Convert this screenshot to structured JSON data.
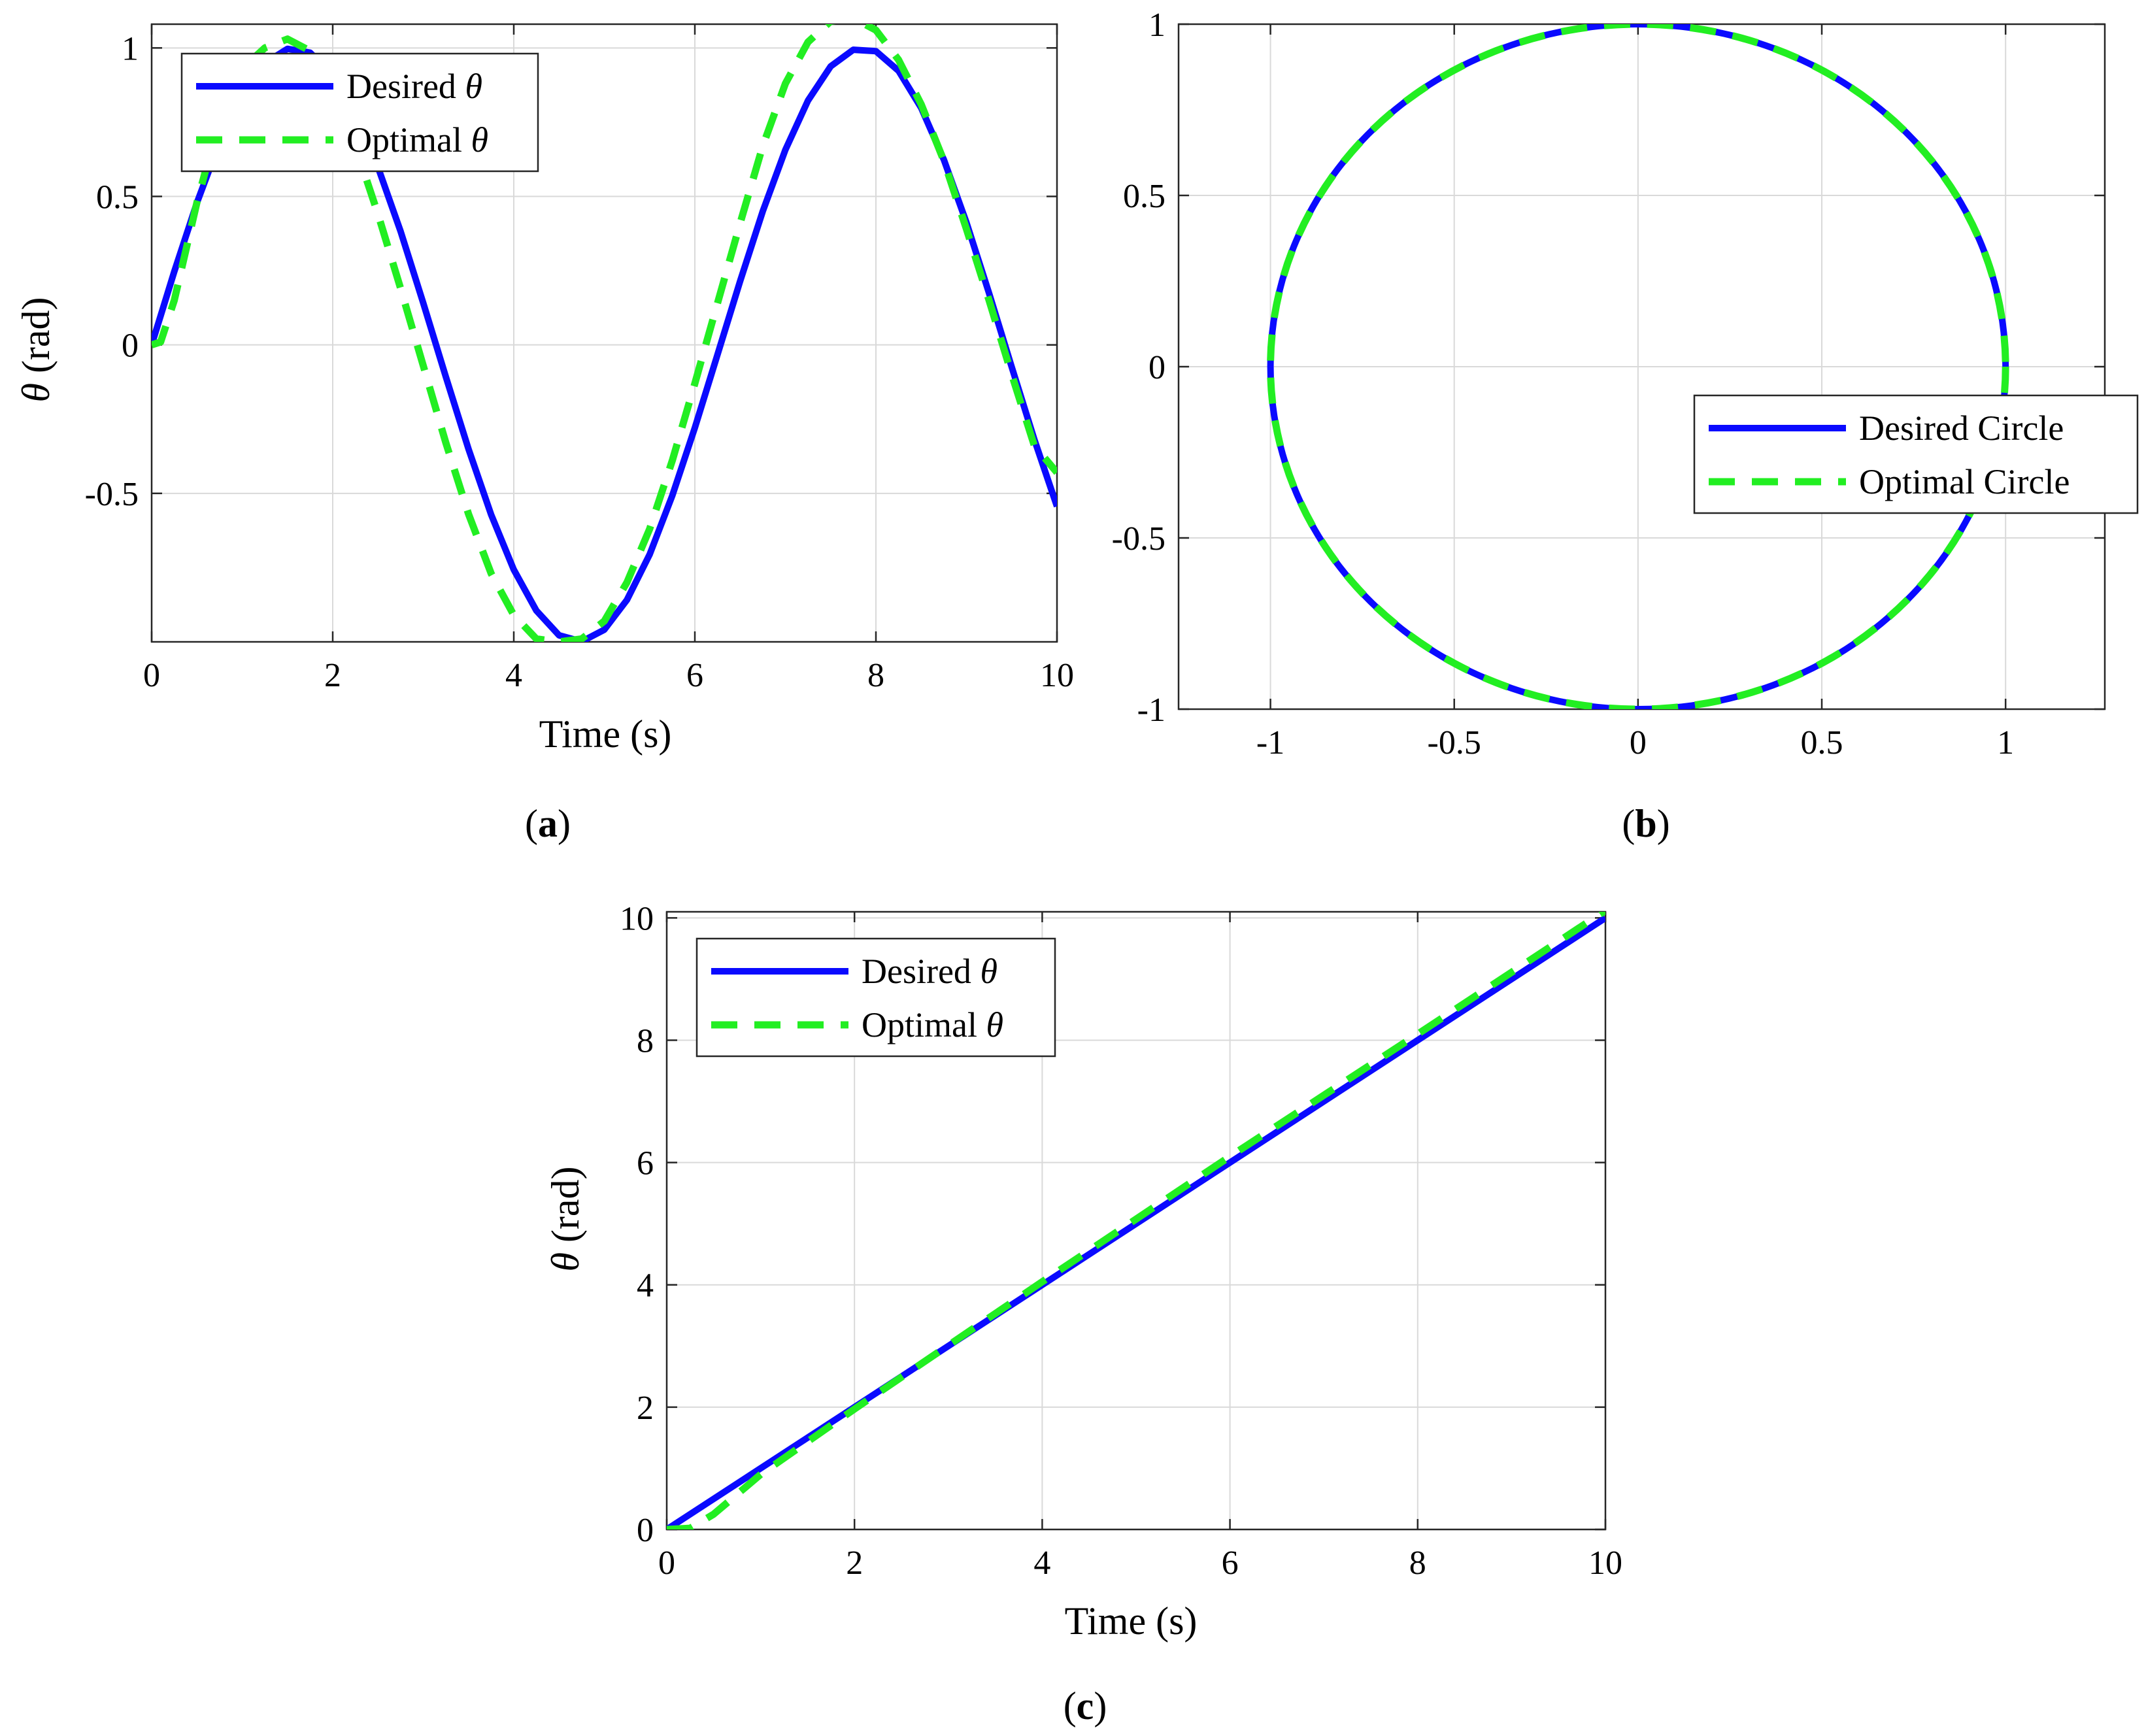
{
  "colors": {
    "desired": "#0a0aff",
    "optimal": "#22ee22"
  },
  "chart_data": [
    {
      "id": "a",
      "type": "line",
      "caption": "a",
      "xlabel": "Time (s)",
      "ylabel_symbol": "θ",
      "ylabel_unit": " (rad)",
      "xlim": [
        0,
        10
      ],
      "ylim": [
        -1,
        1.08
      ],
      "xticks": [
        0,
        2,
        4,
        6,
        8,
        10
      ],
      "xtick_labels": [
        "0",
        "2",
        "4",
        "6",
        "8",
        "10"
      ],
      "yticks": [
        -0.5,
        0,
        0.5,
        1
      ],
      "ytick_labels": [
        "-0.5",
        "0",
        "0.5",
        "1"
      ],
      "grid": true,
      "legend": {
        "placement": "top-left",
        "entries": [
          {
            "text": "Desired ",
            "symbol": "θ",
            "style": "solid"
          },
          {
            "text": "Optimal ",
            "symbol": "θ",
            "style": "dashed"
          }
        ]
      },
      "series": [
        {
          "style": "solid",
          "x": [
            0,
            0.25,
            0.5,
            0.75,
            1,
            1.25,
            1.5,
            1.75,
            2,
            2.25,
            2.5,
            2.75,
            3,
            3.25,
            3.5,
            3.75,
            4,
            4.25,
            4.5,
            4.75,
            5,
            5.25,
            5.5,
            5.75,
            6,
            6.25,
            6.5,
            6.75,
            7,
            7.25,
            7.5,
            7.75,
            8,
            8.25,
            8.5,
            8.75,
            9,
            9.25,
            9.5,
            9.75,
            10
          ],
          "y": [
            0,
            0.247,
            0.479,
            0.682,
            0.841,
            0.949,
            0.997,
            0.984,
            0.909,
            0.778,
            0.598,
            0.382,
            0.141,
            -0.108,
            -0.351,
            -0.572,
            -0.757,
            -0.895,
            -0.978,
            -0.999,
            -0.959,
            -0.859,
            -0.706,
            -0.508,
            -0.279,
            -0.033,
            0.215,
            0.45,
            0.657,
            0.823,
            0.938,
            0.994,
            0.989,
            0.923,
            0.798,
            0.624,
            0.412,
            0.174,
            -0.075,
            -0.319,
            -0.544
          ]
        },
        {
          "style": "dashed",
          "x": [
            0,
            0.1,
            0.25,
            0.5,
            0.75,
            1,
            1.25,
            1.5,
            1.75,
            2,
            2.25,
            2.5,
            2.75,
            3,
            3.25,
            3.5,
            3.75,
            4,
            4.25,
            4.5,
            4.75,
            5,
            5.25,
            5.5,
            5.75,
            6,
            6.25,
            6.5,
            6.75,
            7,
            7.25,
            7.5,
            7.75,
            8,
            8.25,
            8.5,
            8.75,
            9,
            9.25,
            9.5,
            9.75,
            10
          ],
          "y": [
            0,
            0.01,
            0.15,
            0.48,
            0.76,
            0.93,
            1.0,
            1.03,
            0.99,
            0.86,
            0.67,
            0.44,
            0.19,
            -0.07,
            -0.33,
            -0.57,
            -0.77,
            -0.91,
            -0.99,
            -1.0,
            -0.99,
            -0.93,
            -0.8,
            -0.62,
            -0.39,
            -0.13,
            0.14,
            0.41,
            0.67,
            0.88,
            1.02,
            1.09,
            1.1,
            1.06,
            0.96,
            0.81,
            0.62,
            0.39,
            0.15,
            -0.1,
            -0.34,
            -0.43
          ]
        }
      ]
    },
    {
      "id": "b",
      "type": "line",
      "caption": "b",
      "xlabel": "",
      "ylabel": "",
      "xlim": [
        -1.25,
        1.27
      ],
      "ylim": [
        -1,
        1
      ],
      "xticks": [
        -1,
        -0.5,
        0,
        0.5,
        1
      ],
      "xtick_labels": [
        "-1",
        "-0.5",
        "0",
        "0.5",
        "1"
      ],
      "yticks": [
        -1,
        -0.5,
        0,
        0.5,
        1
      ],
      "ytick_labels": [
        "-1",
        "-0.5",
        "0",
        "0.5",
        "1"
      ],
      "grid": true,
      "legend": {
        "placement": "right",
        "entries": [
          {
            "text": "Desired Circle",
            "symbol": "",
            "style": "solid"
          },
          {
            "text": "Optimal Circle",
            "symbol": "",
            "style": "dashed"
          }
        ]
      },
      "series": [
        {
          "style": "solid",
          "shape": "circle",
          "center": [
            0,
            0
          ],
          "radius": 1
        },
        {
          "style": "dashed",
          "shape": "circle",
          "center": [
            0,
            0
          ],
          "radius": 1
        }
      ]
    },
    {
      "id": "c",
      "type": "line",
      "caption": "c",
      "xlabel": "Time (s)",
      "ylabel_symbol": "θ",
      "ylabel_unit": " (rad)",
      "xlim": [
        0,
        10
      ],
      "ylim": [
        0,
        10.1
      ],
      "xticks": [
        0,
        2,
        4,
        6,
        8,
        10
      ],
      "xtick_labels": [
        "0",
        "2",
        "4",
        "6",
        "8",
        "10"
      ],
      "yticks": [
        0,
        2,
        4,
        6,
        8,
        10
      ],
      "ytick_labels": [
        "0",
        "2",
        "4",
        "6",
        "8",
        "10"
      ],
      "grid": true,
      "legend": {
        "placement": "top-left",
        "entries": [
          {
            "text": "Desired ",
            "symbol": "θ",
            "style": "solid"
          },
          {
            "text": "Optimal ",
            "symbol": "θ",
            "style": "dashed"
          }
        ]
      },
      "series": [
        {
          "style": "solid",
          "x": [
            0,
            10
          ],
          "y": [
            0,
            10
          ]
        },
        {
          "style": "dashed",
          "x": [
            0,
            0.25,
            0.5,
            1,
            2,
            4,
            6,
            8,
            10
          ],
          "y": [
            0,
            0.02,
            0.25,
            0.9,
            1.97,
            4.05,
            6.1,
            8.1,
            10.12
          ]
        }
      ]
    }
  ]
}
